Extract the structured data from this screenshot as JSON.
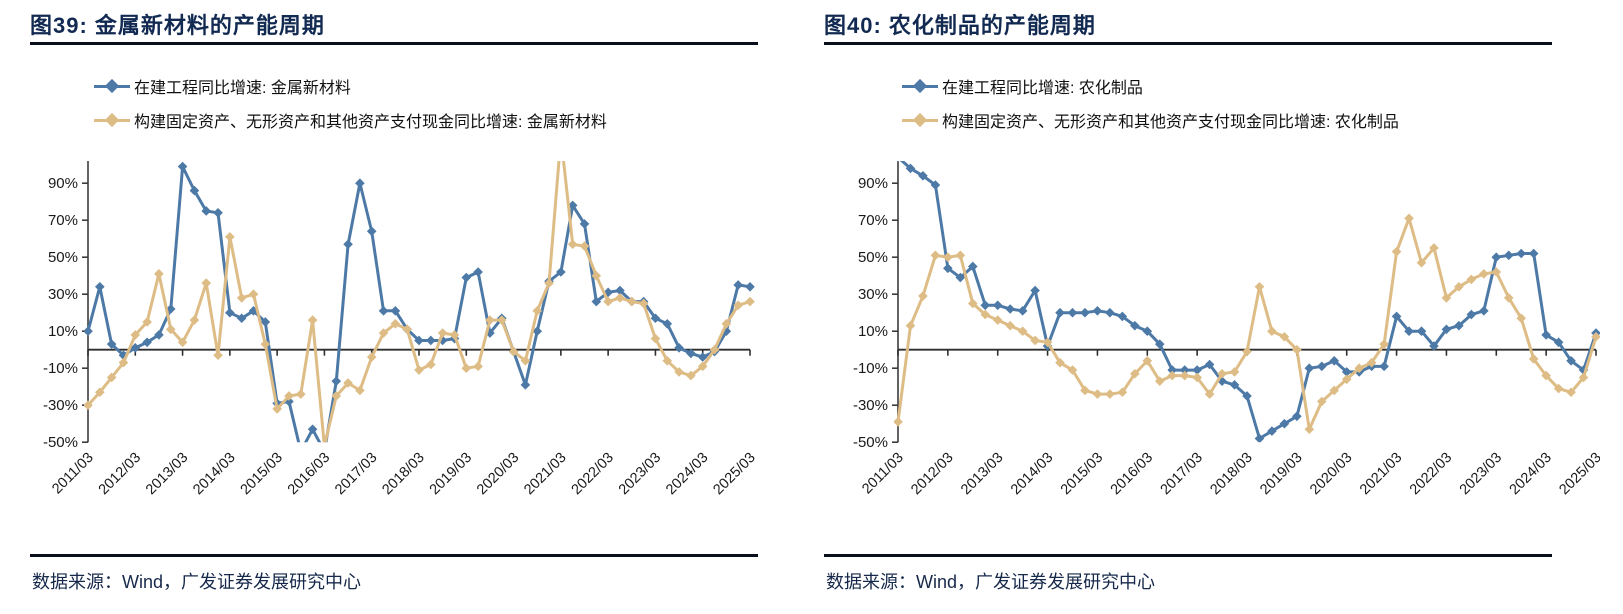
{
  "page": {
    "background": "#ffffff"
  },
  "colors": {
    "series_blue": "#4d79a7",
    "series_tan": "#debc85",
    "title_navy": "#122a52",
    "rule_dark": "#0a0f1c",
    "axis_gray": "#3c3c3c"
  },
  "panels": [
    {
      "title": "图39:  金属新材料的产能周期",
      "legend": [
        {
          "label": "在建工程同比增速: 金属新材料",
          "series": "blue"
        },
        {
          "label": "构建固定资产、无形资产和其他资产支付现金同比增速: 金属新材料",
          "series": "tan"
        }
      ],
      "source": "数据来源：Wind，广发证券发展研究中心",
      "chart_data": {
        "type": "line",
        "x_start": "2011/03",
        "frequency": "quarterly",
        "x_tick_labels": [
          "2011/03",
          "2012/03",
          "2013/03",
          "2014/03",
          "2015/03",
          "2016/03",
          "2017/03",
          "2018/03",
          "2019/03",
          "2020/03",
          "2021/03",
          "2022/03",
          "2023/03",
          "2024/03",
          "2025/03"
        ],
        "y_ticks": [
          90,
          70,
          50,
          30,
          10,
          -10,
          -30,
          -50
        ],
        "y_tick_labels": [
          "90%",
          "70%",
          "50%",
          "30%",
          "10%",
          "-10%",
          "-30%",
          "-50%"
        ],
        "ylim": [
          -50,
          100
        ],
        "grid": false,
        "legend_position": "top-left",
        "series": [
          {
            "name": "在建工程同比增速: 金属新材料",
            "color": "#4d79a7",
            "values": [
              10,
              34,
              3,
              -3,
              1,
              4,
              8,
              22,
              99,
              86,
              75,
              74,
              20,
              17,
              21,
              15,
              -29,
              -28,
              -55,
              -43,
              -55,
              -17,
              57,
              90,
              64,
              21,
              21,
              11,
              5,
              5,
              5,
              6,
              39,
              42,
              9,
              17,
              -1,
              -19,
              10,
              37,
              42,
              78,
              68,
              26,
              31,
              32,
              26,
              26,
              17,
              14,
              1,
              -2,
              -4,
              -1,
              10,
              35,
              34
            ]
          },
          {
            "name": "构建固定资产、无形资产和其他资产支付现金同比增速: 金属新材料",
            "color": "#debc85",
            "values": [
              -30,
              -23,
              -15,
              -7,
              8,
              15,
              41,
              11,
              4,
              16,
              36,
              -3,
              61,
              28,
              30,
              3,
              -32,
              -25,
              -24,
              16,
              -52,
              -25,
              -18,
              -22,
              -4,
              9,
              14,
              11,
              -11,
              -8,
              9,
              8,
              -10,
              -9,
              16,
              16,
              -1,
              -6,
              21,
              36,
              115,
              57,
              56,
              40,
              26,
              28,
              26,
              25,
              6,
              -6,
              -12,
              -14,
              -9,
              0,
              14,
              24,
              26
            ]
          }
        ]
      }
    },
    {
      "title": "图40:  农化制品的产能周期",
      "legend": [
        {
          "label": "在建工程同比增速: 农化制品",
          "series": "blue"
        },
        {
          "label": "构建固定资产、无形资产和其他资产支付现金同比增速: 农化制品",
          "series": "tan"
        }
      ],
      "source": "数据来源：Wind，广发证券发展研究中心",
      "chart_data": {
        "type": "line",
        "x_start": "2011/03",
        "frequency": "quarterly",
        "x_tick_labels": [
          "2011/03",
          "2012/03",
          "2013/03",
          "2014/03",
          "2015/03",
          "2016/03",
          "2017/03",
          "2018/03",
          "2019/03",
          "2020/03",
          "2021/03",
          "2022/03",
          "2023/03",
          "2024/03",
          "2025/03"
        ],
        "y_ticks": [
          90,
          70,
          50,
          30,
          10,
          -10,
          -30,
          -50
        ],
        "y_tick_labels": [
          "90%",
          "70%",
          "50%",
          "30%",
          "10%",
          "-10%",
          "-30%",
          "-50%"
        ],
        "ylim": [
          -50,
          100
        ],
        "grid": false,
        "legend_position": "top-left",
        "series": [
          {
            "name": "在建工程同比增速: 农化制品",
            "color": "#4d79a7",
            "values": [
              104,
              98,
              94,
              89,
              44,
              39,
              45,
              24,
              24,
              22,
              21,
              32,
              2,
              20,
              20,
              20,
              21,
              20,
              18,
              13,
              10,
              3,
              -11,
              -11,
              -11,
              -8,
              -17,
              -19,
              -25,
              -48,
              -44,
              -40,
              -36,
              -10,
              -9,
              -6,
              -12,
              -12,
              -9,
              -9,
              18,
              10,
              10,
              2,
              11,
              13,
              19,
              21,
              50,
              51,
              52,
              52,
              8,
              4,
              -6,
              -11,
              9
            ]
          },
          {
            "name": "构建固定资产、无形资产和其他资产支付现金同比增速: 农化制品",
            "color": "#debc85",
            "values": [
              -39,
              13,
              29,
              51,
              50,
              51,
              25,
              19,
              16,
              13,
              10,
              5,
              4,
              -7,
              -11,
              -22,
              -24,
              -24,
              -23,
              -13,
              -6,
              -17,
              -14,
              -14,
              -15,
              -24,
              -13,
              -12,
              -1,
              34,
              10,
              7,
              0,
              -43,
              -28,
              -22,
              -16,
              -10,
              -7,
              3,
              53,
              71,
              47,
              55,
              28,
              34,
              38,
              41,
              42,
              28,
              17,
              -5,
              -14,
              -21,
              -23,
              -15,
              7
            ]
          }
        ]
      }
    }
  ]
}
